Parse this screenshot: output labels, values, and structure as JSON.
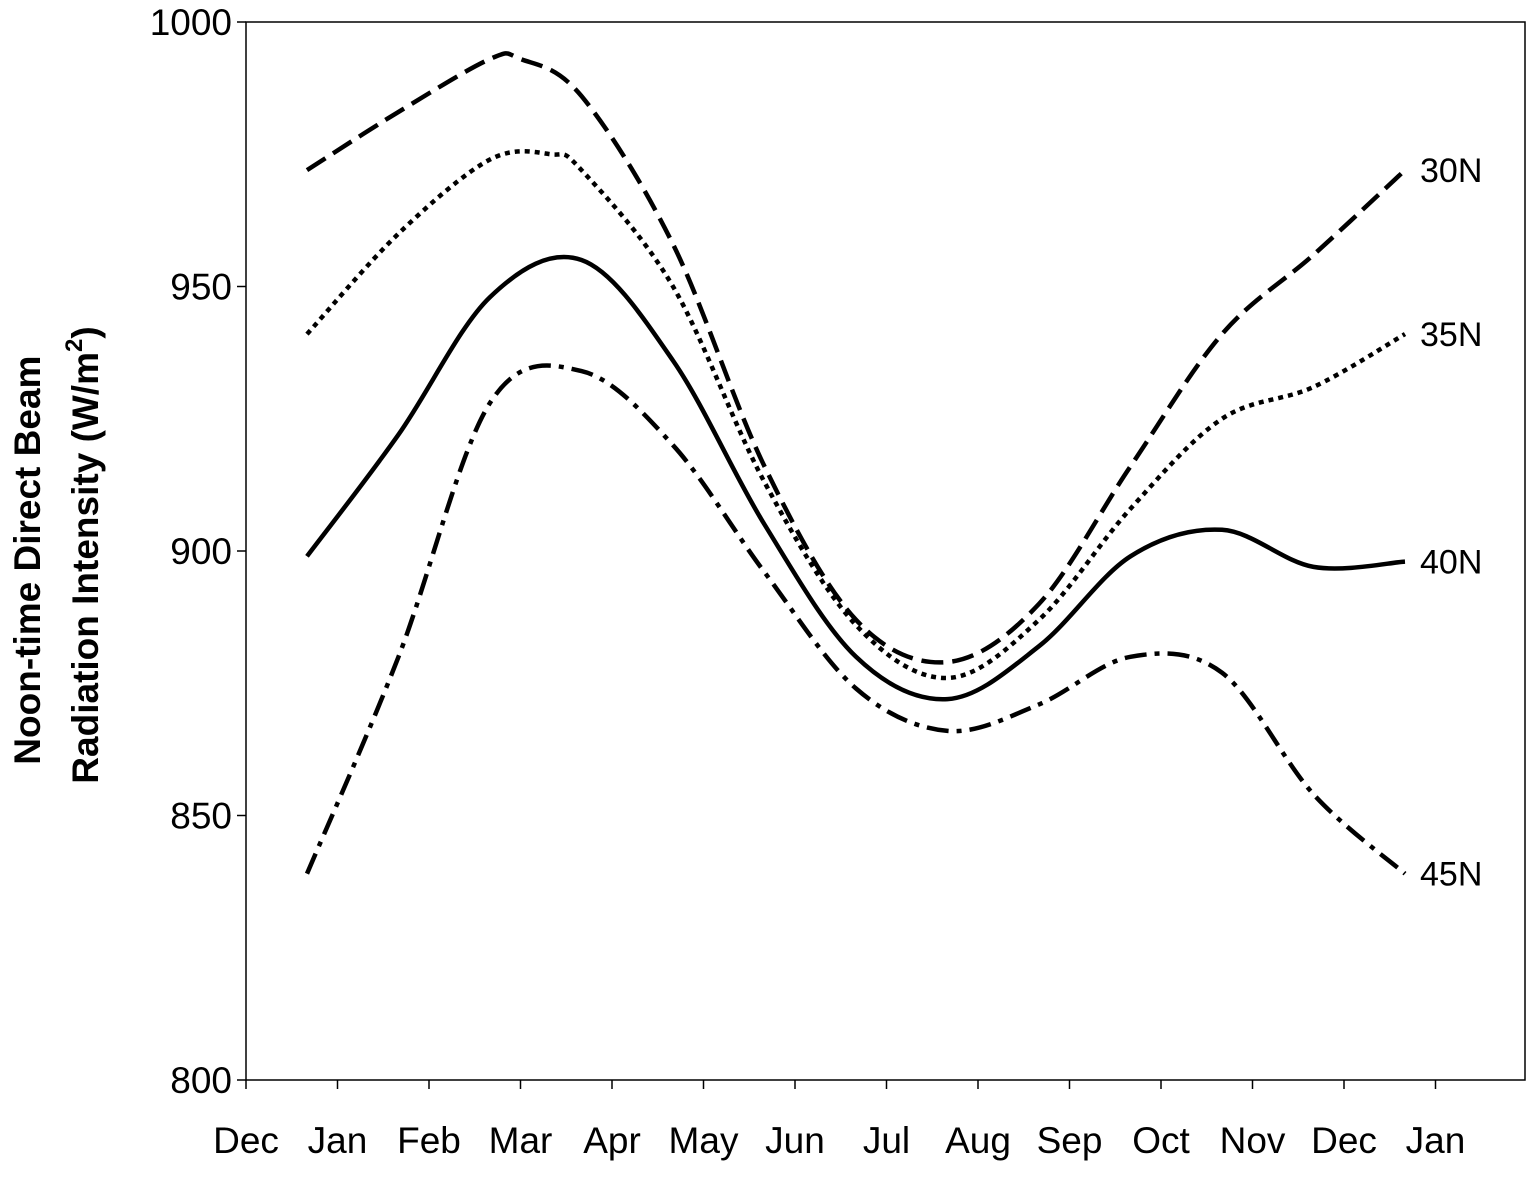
{
  "chart_data": {
    "type": "line",
    "title": "",
    "xlabel": "",
    "ylabel_lines": [
      "Noon-time Direct Beam",
      "Radiation Intensity (W/m",
      "2",
      ")"
    ],
    "x_ticks": [
      "Dec",
      "Jan",
      "Feb",
      "Mar",
      "Apr",
      "May",
      "Jun",
      "Jul",
      "Aug",
      "Sep",
      "Oct",
      "Nov",
      "Dec",
      "Jan"
    ],
    "y_ticks": [
      "800",
      "850",
      "900",
      "950",
      "1000"
    ],
    "ylim": [
      800,
      1000
    ],
    "x_domain": [
      "Dec",
      "Jan"
    ],
    "grid": false,
    "legend": "none (series labelled at right end of lines)",
    "series": [
      {
        "name": "30N",
        "style": "dashed",
        "x": [
          "Dec 21",
          "Jan 21",
          "Feb 21",
          "Mar 1",
          "Mar 21",
          "Apr 21",
          "May 21",
          "Jun 21",
          "Jul 21",
          "Aug 21",
          "Sep 21",
          "Oct 21",
          "Nov 21",
          "Dec 21"
        ],
        "values": [
          972,
          983,
          993,
          993,
          986,
          958,
          916,
          887,
          879,
          890,
          916,
          941,
          956,
          972
        ]
      },
      {
        "name": "35N",
        "style": "dotted",
        "x": [
          "Dec 21",
          "Jan 21",
          "Feb 21",
          "Mar 11",
          "Mar 21",
          "Apr 21",
          "May 21",
          "Jun 21",
          "Jul 21",
          "Aug 21",
          "Sep 21",
          "Oct 21",
          "Nov 21",
          "Dec 21"
        ],
        "values": [
          941,
          960,
          974,
          975,
          972,
          950,
          913,
          886,
          876,
          887,
          908,
          925,
          931,
          941
        ]
      },
      {
        "name": "40N",
        "style": "solid",
        "x": [
          "Dec 21",
          "Jan 21",
          "Feb 21",
          "Mar 21",
          "Apr 21",
          "May 21",
          "Jun 21",
          "Jul 21",
          "Aug 21",
          "Sep 21",
          "Oct 21",
          "Nov 21",
          "Dec 21"
        ],
        "values": [
          899,
          922,
          948,
          955,
          936,
          905,
          880,
          872,
          882,
          899,
          904,
          897,
          898
        ]
      },
      {
        "name": "45N",
        "style": "dash-dot",
        "x": [
          "Dec 21",
          "Jan 21",
          "Feb 21",
          "Mar 21",
          "Apr 21",
          "May 21",
          "Jun 21",
          "Jul 21",
          "Aug 21",
          "Sep 21",
          "Oct 21",
          "Nov 21",
          "Dec 21"
        ],
        "values": [
          839,
          880,
          928,
          934,
          920,
          896,
          874,
          866,
          871,
          880,
          877,
          854,
          839
        ]
      }
    ]
  }
}
